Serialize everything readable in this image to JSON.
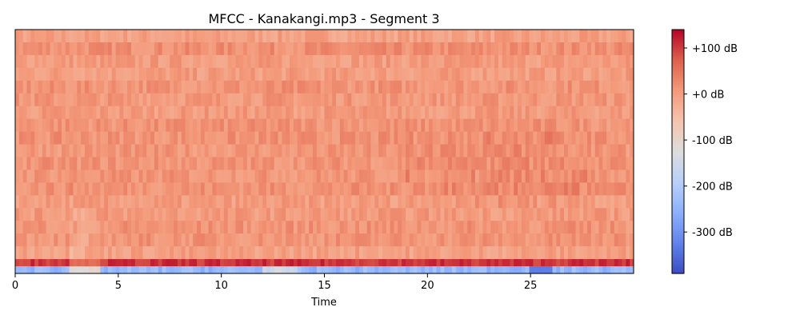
{
  "chart_data": {
    "type": "heatmap",
    "title": "MFCC - Kanakangi.mp3 - Segment 3",
    "xlabel": "Time",
    "ylabel": "",
    "xlim": [
      0,
      30
    ],
    "x_ticks": [
      0,
      5,
      10,
      15,
      20,
      25
    ],
    "x_tick_labels": [
      "0",
      "5",
      "10",
      "15",
      "20",
      "25"
    ],
    "n_coefficients": 20,
    "colormap": "coolwarm",
    "colorbar": {
      "vmin": -390,
      "vmax": 140,
      "ticks": [
        100,
        0,
        -100,
        -200,
        -300
      ],
      "tick_labels": [
        "+100 dB",
        "+0 dB",
        "-100 dB",
        "-200 dB",
        "-300 dB"
      ]
    },
    "row_profile_db": {
      "mfcc_0_mean": -240,
      "mfcc_1_mean": 105,
      "mfcc_2_to_19_typical_range": [
        -30,
        40
      ]
    }
  }
}
